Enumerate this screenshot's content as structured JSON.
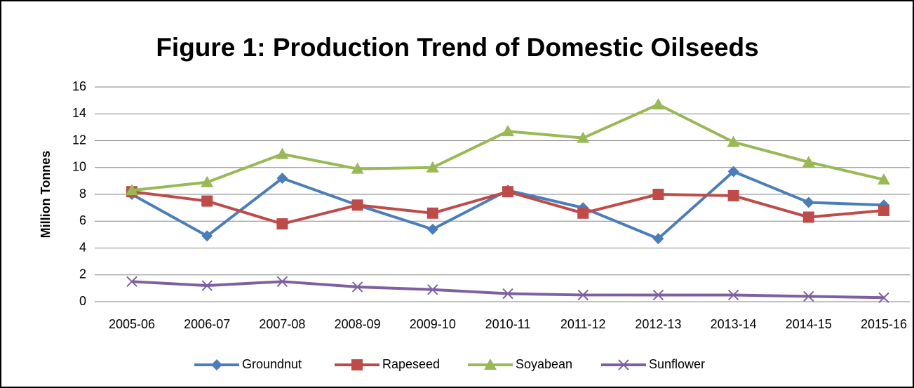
{
  "chart_data": {
    "type": "line",
    "title": "Figure 1: Production Trend of Domestic Oilseeds",
    "y_label": "Million Tonnes",
    "categories": [
      "2005-06",
      "2006-07",
      "2007-08",
      "2008-09",
      "2009-10",
      "2010-11",
      "2011-12",
      "2012-13",
      "2013-14",
      "2014-15",
      "2015-16"
    ],
    "series": [
      {
        "name": "Groundnut",
        "color": "#4a7ebb",
        "marker": "diamond",
        "values": [
          8.0,
          4.9,
          9.2,
          7.2,
          5.4,
          8.3,
          7.0,
          4.7,
          9.7,
          7.4,
          7.2
        ]
      },
      {
        "name": "Rapeseed",
        "color": "#be4b48",
        "marker": "square",
        "values": [
          8.2,
          7.5,
          5.8,
          7.2,
          6.6,
          8.2,
          6.6,
          8.0,
          7.9,
          6.3,
          6.8
        ]
      },
      {
        "name": "Soyabean",
        "color": "#98b954",
        "marker": "triangle",
        "values": [
          8.3,
          8.9,
          11.0,
          9.9,
          10.0,
          12.7,
          12.2,
          14.7,
          11.9,
          10.4,
          9.1
        ]
      },
      {
        "name": "Sunflower",
        "color": "#7d60a0",
        "marker": "x",
        "values": [
          1.5,
          1.2,
          1.5,
          1.1,
          0.9,
          0.6,
          0.5,
          0.5,
          0.5,
          0.4,
          0.3
        ]
      }
    ],
    "ylim": [
      0,
      16
    ],
    "yticks": [
      0,
      2,
      4,
      6,
      8,
      10,
      12,
      14,
      16
    ],
    "grid": true,
    "legend": "bottom"
  }
}
